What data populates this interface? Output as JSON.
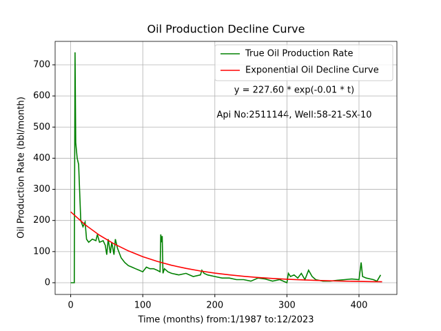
{
  "chart_data": {
    "type": "line",
    "title": "Oil Production Decline Curve",
    "x_label": "Time (months) from:1/1987 to:12/2023",
    "y_label": "Oil Production Rate (bbl/month)",
    "annotations": [
      "y = 227.60 * exp(-0.01 * t)",
      "Api No:2511144, Well:58-21-SX-10"
    ],
    "xlim": [
      -21.6,
      452.6
    ],
    "ylim": [
      -37.7,
      775.3
    ],
    "xticks": [
      0,
      100,
      200,
      300,
      400
    ],
    "yticks": [
      0,
      100,
      200,
      300,
      400,
      500,
      600,
      700
    ],
    "grid": true,
    "legend": "upper right",
    "series": [
      {
        "name": "True Oil Production Rate",
        "color": "#008000",
        "x": [
          0,
          5,
          6,
          7,
          9,
          11,
          14,
          17,
          20,
          22,
          25,
          30,
          35,
          37,
          40,
          45,
          48,
          50,
          52,
          55,
          57,
          60,
          62,
          65,
          70,
          75,
          80,
          85,
          90,
          95,
          100,
          105,
          110,
          115,
          120,
          124,
          125,
          126,
          127,
          128,
          130,
          135,
          140,
          150,
          160,
          170,
          180,
          182,
          185,
          190,
          200,
          210,
          220,
          230,
          240,
          250,
          260,
          270,
          280,
          290,
          300,
          302,
          305,
          310,
          315,
          320,
          325,
          330,
          335,
          340,
          350,
          360,
          370,
          380,
          390,
          400,
          403,
          405,
          410,
          420,
          425,
          430
        ],
        "values": [
          0,
          0,
          740,
          450,
          400,
          380,
          200,
          180,
          195,
          140,
          130,
          140,
          135,
          155,
          130,
          135,
          120,
          90,
          140,
          95,
          130,
          90,
          140,
          110,
          80,
          65,
          55,
          50,
          45,
          40,
          35,
          50,
          45,
          45,
          40,
          35,
          155,
          130,
          150,
          30,
          45,
          35,
          30,
          25,
          30,
          20,
          25,
          40,
          30,
          25,
          20,
          15,
          15,
          10,
          10,
          5,
          15,
          12,
          5,
          10,
          0,
          30,
          20,
          25,
          15,
          30,
          10,
          40,
          20,
          10,
          5,
          5,
          8,
          10,
          12,
          10,
          65,
          20,
          15,
          10,
          5,
          25
        ]
      },
      {
        "name": "Exponential Oil Decline Curve",
        "color": "#ff0000",
        "x": [
          0,
          20,
          40,
          60,
          80,
          100,
          120,
          140,
          160,
          180,
          200,
          220,
          240,
          260,
          280,
          300,
          320,
          340,
          360,
          380,
          400,
          420,
          432
        ],
        "values": [
          227.6,
          186.3,
          152.6,
          124.9,
          102.3,
          83.7,
          68.6,
          56.1,
          46.0,
          37.6,
          30.8,
          25.2,
          20.6,
          16.9,
          13.8,
          11.3,
          9.3,
          7.6,
          6.2,
          5.1,
          4.2,
          3.4,
          3.0
        ]
      }
    ]
  }
}
